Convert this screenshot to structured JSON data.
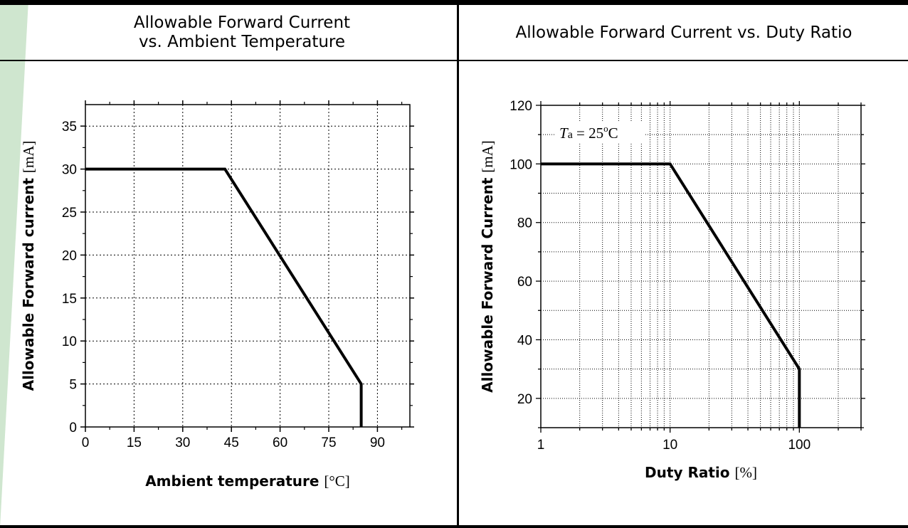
{
  "headers": {
    "left_line1": "Allowable Forward Current",
    "left_line2": "vs. Ambient Temperature",
    "right": "Allowable Forward Current vs. Duty Ratio"
  },
  "theme": {
    "accent": "#cfe6cf",
    "line": "#000000",
    "grid": "#000000"
  },
  "chart_data": [
    {
      "type": "line",
      "xlabel": "Ambient temperature ",
      "xunit": "[°C]",
      "ylabel": "Allowable Forward current ",
      "yunit": "[mA]",
      "xlim": [
        0,
        100
      ],
      "ylim": [
        0,
        37.5
      ],
      "xticks": [
        0,
        15,
        30,
        45,
        60,
        75,
        90
      ],
      "yticks": [
        0,
        5,
        10,
        15,
        20,
        25,
        30,
        35
      ],
      "grid": true,
      "series": [
        {
          "x": [
            0,
            43,
            85,
            85
          ],
          "y": [
            30,
            30,
            5,
            0
          ]
        }
      ]
    },
    {
      "type": "line",
      "xlabel": "Duty Ratio ",
      "xunit": "[%]",
      "ylabel": "Allowable Forward Current  ",
      "yunit": "[mA]",
      "xscale": "log",
      "xlim": [
        1,
        300
      ],
      "ylim": [
        10,
        120
      ],
      "xticks": [
        1,
        10,
        100
      ],
      "yticks": [
        20,
        40,
        60,
        80,
        100,
        120
      ],
      "grid": true,
      "annotation": {
        "t": "T",
        "sub": "a",
        "rest": " = 25",
        "deg": "o",
        "unit": "C"
      },
      "series": [
        {
          "x": [
            1,
            10,
            100,
            100
          ],
          "y": [
            100,
            100,
            30,
            10
          ]
        }
      ]
    }
  ]
}
